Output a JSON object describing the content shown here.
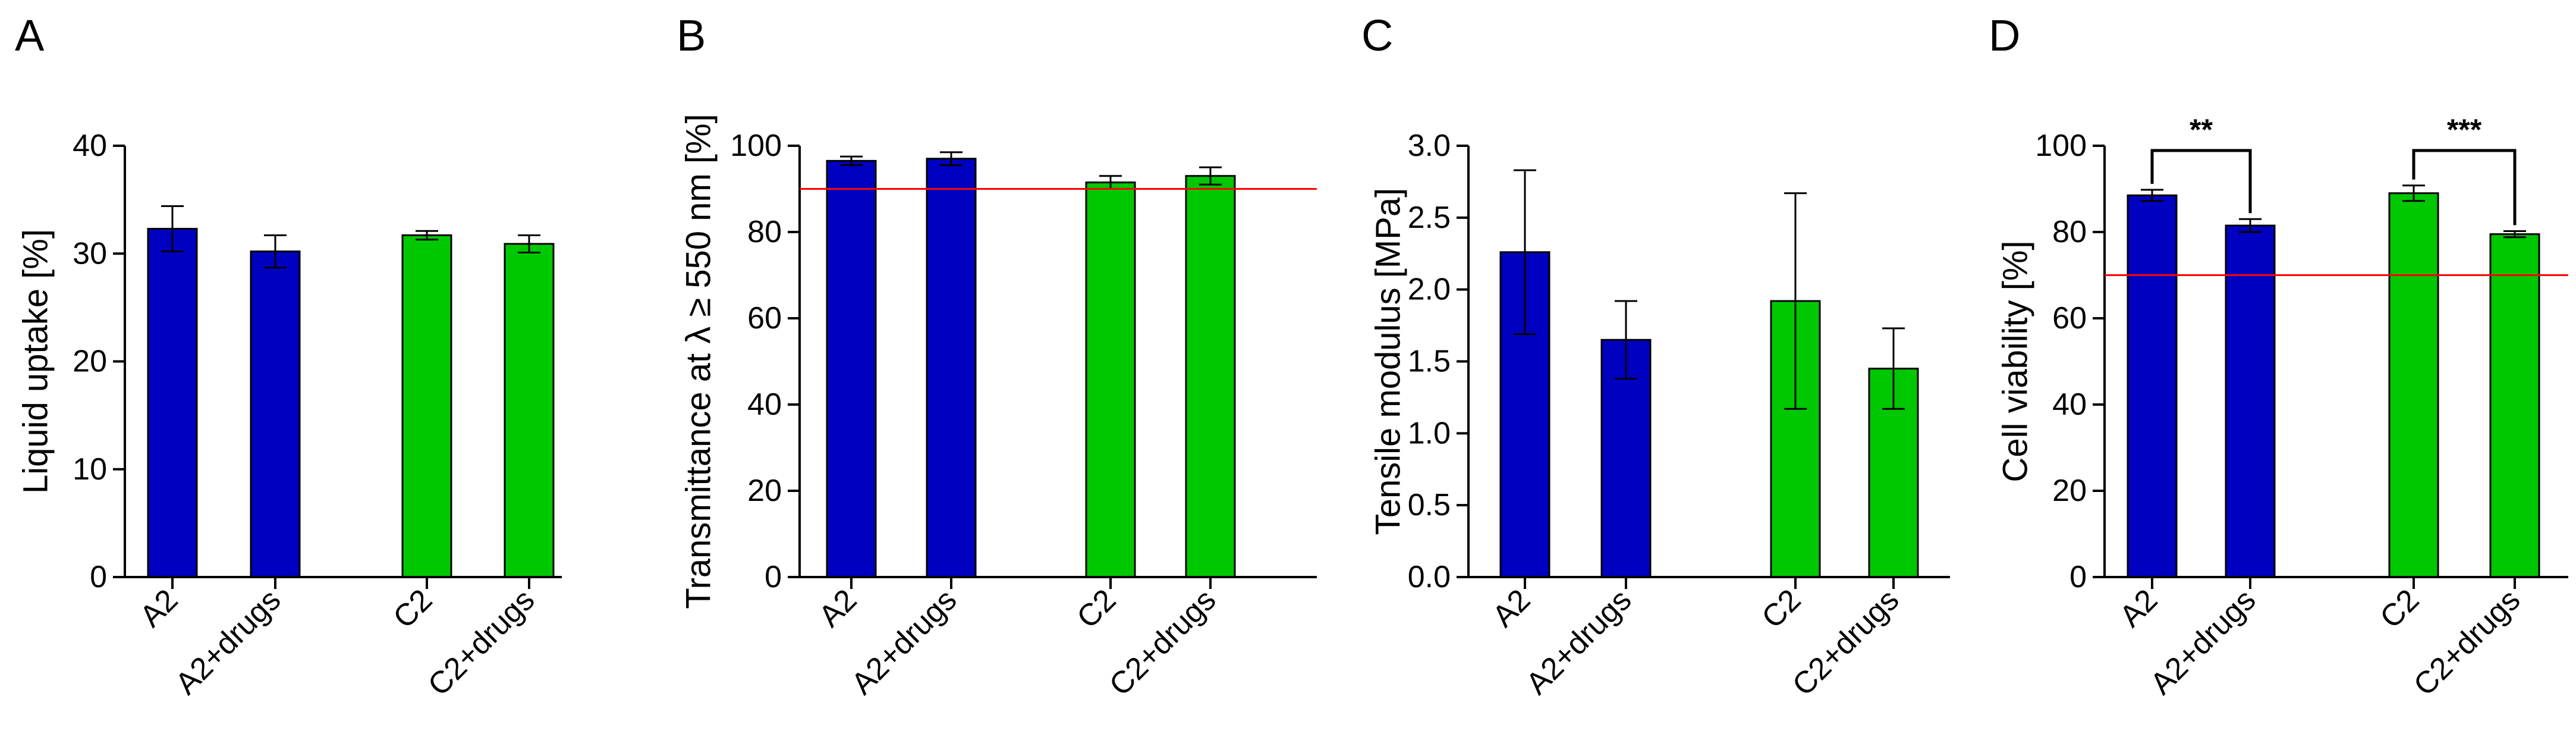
{
  "chart_data": [
    {
      "type": "bar",
      "panel": "A",
      "title": "",
      "xlabel": "",
      "ylabel": "Liquid uptake [%]",
      "ylim": [
        0,
        40
      ],
      "yticks": [
        "0",
        "10",
        "20",
        "30",
        "40"
      ],
      "categories": [
        "A2",
        "A2+drugs",
        "C2",
        "C2+drugs"
      ],
      "values": [
        32.3,
        30.2,
        31.7,
        30.9
      ],
      "errors": [
        2.1,
        1.5,
        0.4,
        0.8
      ],
      "colors": [
        "#0000c0",
        "#0000c0",
        "#00c800",
        "#00c800"
      ],
      "reference_line": null,
      "significance": []
    },
    {
      "type": "bar",
      "panel": "B",
      "title": "",
      "xlabel": "",
      "ylabel": "Transmittance at λ ≥ 550 nm [%]",
      "ylim": [
        0,
        100
      ],
      "yticks": [
        "0",
        "20",
        "40",
        "60",
        "80",
        "100"
      ],
      "categories": [
        "A2",
        "A2+drugs",
        "C2",
        "C2+drugs"
      ],
      "values": [
        96.5,
        97,
        91.5,
        93
      ],
      "errors": [
        1,
        1.5,
        1.5,
        2
      ],
      "colors": [
        "#0000c0",
        "#0000c0",
        "#00c800",
        "#00c800"
      ],
      "reference_line": 90,
      "significance": []
    },
    {
      "type": "bar",
      "panel": "C",
      "title": "",
      "xlabel": "",
      "ylabel": "Tensile modulus [MPa]",
      "ylim": [
        0,
        3
      ],
      "yticks": [
        "0.0",
        "0.5",
        "1.0",
        "1.5",
        "2.0",
        "2.5",
        "3.0"
      ],
      "categories": [
        "A2",
        "A2+drugs",
        "C2",
        "C2+drugs"
      ],
      "values": [
        2.26,
        1.65,
        1.92,
        1.45
      ],
      "errors": [
        0.57,
        0.27,
        0.75,
        0.28
      ],
      "colors": [
        "#0000c0",
        "#0000c0",
        "#00c800",
        "#00c800"
      ],
      "reference_line": null,
      "significance": []
    },
    {
      "type": "bar",
      "panel": "D",
      "title": "",
      "xlabel": "",
      "ylabel": "Cell viability [%]",
      "ylim": [
        0,
        100
      ],
      "yticks": [
        "0",
        "20",
        "40",
        "60",
        "80",
        "100"
      ],
      "categories": [
        "A2",
        "A2+drugs",
        "C2",
        "C2+drugs"
      ],
      "values": [
        88.5,
        81.5,
        89,
        79.5
      ],
      "errors": [
        1.3,
        1.5,
        1.8,
        0.7
      ],
      "colors": [
        "#0000c0",
        "#0000c0",
        "#00c800",
        "#00c800"
      ],
      "reference_line": 70,
      "significance": [
        {
          "from": "A2",
          "to": "A2+drugs",
          "label": "**"
        },
        {
          "from": "C2",
          "to": "C2+drugs",
          "label": "***"
        }
      ]
    }
  ]
}
